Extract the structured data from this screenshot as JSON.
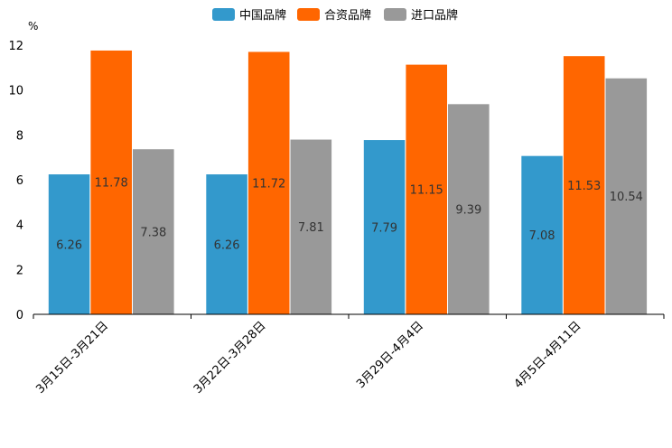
{
  "chart_data": {
    "type": "bar",
    "title": "",
    "xlabel": "",
    "ylabel": "%",
    "ylim": [
      0,
      12
    ],
    "yticks": [
      0,
      2,
      4,
      6,
      8,
      10,
      12
    ],
    "categories": [
      "3月15日-3月21日",
      "3月22日-3月28日",
      "3月29日-4月4日",
      "4月5日-4月11日"
    ],
    "series": [
      {
        "name": "中国品牌",
        "color": "#3399cc",
        "values": [
          6.26,
          6.26,
          7.79,
          7.08
        ]
      },
      {
        "name": "合资品牌",
        "color": "#ff6600",
        "values": [
          11.78,
          11.72,
          11.15,
          11.53
        ]
      },
      {
        "name": "进口品牌",
        "color": "#999999",
        "values": [
          7.38,
          7.81,
          9.39,
          10.54
        ]
      }
    ],
    "legend": "top-center",
    "grid": false
  }
}
